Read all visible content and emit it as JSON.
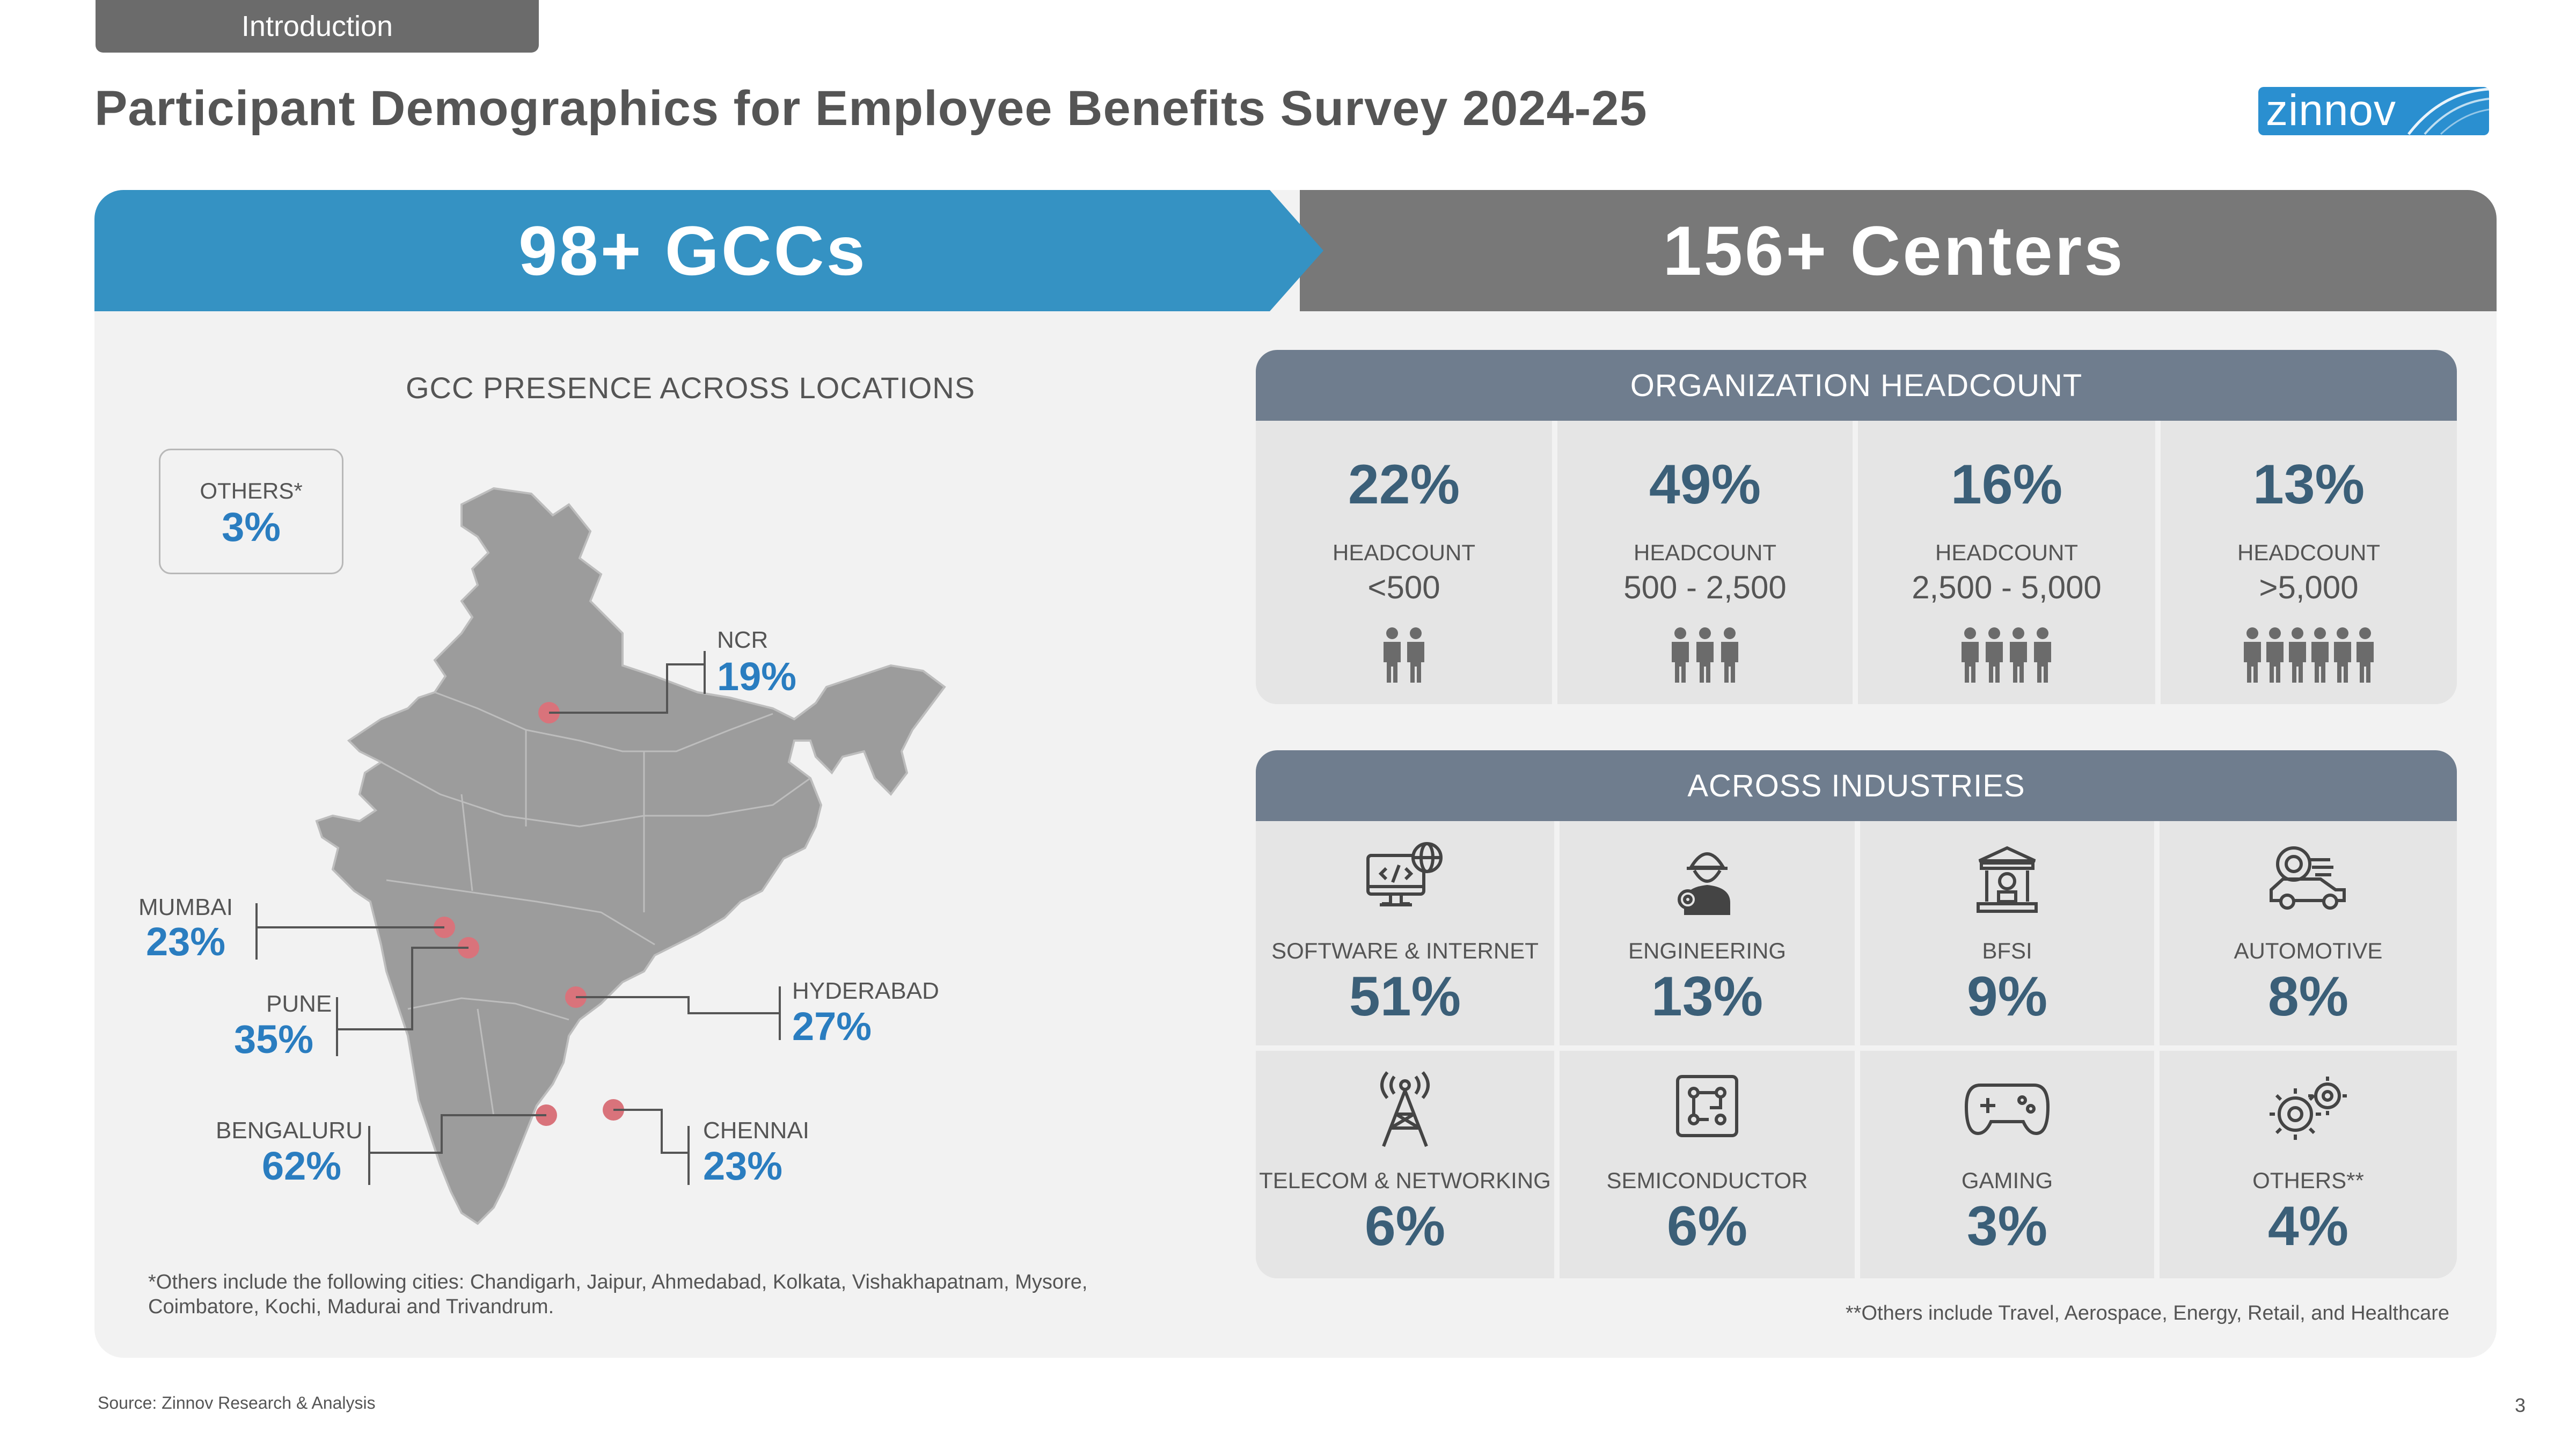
{
  "header": {
    "section_tab": "Introduction",
    "title": "Participant Demographics for Employee Benefits Survey 2024-25",
    "logo_text": "zinnov"
  },
  "banner": {
    "left": "98+ GCCs",
    "right": "156+ Centers",
    "left_color": "#3592c3",
    "right_color": "#787878"
  },
  "map": {
    "title": "GCC PRESENCE ACROSS LOCATIONS",
    "others": {
      "label": "OTHERS*",
      "value": "3%"
    },
    "cities": [
      {
        "name": "NCR",
        "value": "19%"
      },
      {
        "name": "MUMBAI",
        "value": "23%"
      },
      {
        "name": "PUNE",
        "value": "35%"
      },
      {
        "name": "HYDERABAD",
        "value": "27%"
      },
      {
        "name": "BENGALURU",
        "value": "62%"
      },
      {
        "name": "CHENNAI",
        "value": "23%"
      }
    ],
    "footnote": "*Others include the following cities: Chandigarh, Jaipur, Ahmedabad, Kolkata, Vishakhapatnam, Mysore, Coimbatore, Kochi, Madurai and Trivandrum."
  },
  "headcount": {
    "title": "ORGANIZATION HEADCOUNT",
    "items": [
      {
        "pct": "22%",
        "label": "HEADCOUNT",
        "range": "<500",
        "icon": "people-2-icon"
      },
      {
        "pct": "49%",
        "label": "HEADCOUNT",
        "range": "500 - 2,500",
        "icon": "people-3-icon"
      },
      {
        "pct": "16%",
        "label": "HEADCOUNT",
        "range": "2,500 - 5,000",
        "icon": "people-4-icon"
      },
      {
        "pct": "13%",
        "label": "HEADCOUNT",
        "range": ">5,000",
        "icon": "people-6-icon"
      }
    ]
  },
  "industries": {
    "title": "ACROSS INDUSTRIES",
    "items": [
      {
        "label": "SOFTWARE & INTERNET",
        "pct": "51%",
        "icon": "computer-globe-icon"
      },
      {
        "label": "ENGINEERING",
        "pct": "13%",
        "icon": "engineer-icon"
      },
      {
        "label": "BFSI",
        "pct": "9%",
        "icon": "bank-icon"
      },
      {
        "label": "AUTOMOTIVE",
        "pct": "8%",
        "icon": "car-icon"
      },
      {
        "label": "TELECOM & NETWORKING",
        "pct": "6%",
        "icon": "tower-icon"
      },
      {
        "label": "SEMICONDUCTOR",
        "pct": "6%",
        "icon": "chip-icon"
      },
      {
        "label": "GAMING",
        "pct": "3%",
        "icon": "gamepad-icon"
      },
      {
        "label": "OTHERS**",
        "pct": "4%",
        "icon": "gears-icon"
      }
    ],
    "footnote": "**Others include Travel, Aerospace, Energy, Retail, and Healthcare"
  },
  "footer": {
    "source": "Source: Zinnov Research & Analysis",
    "page_number": "3"
  },
  "colors": {
    "accent_blue": "#2a7dc0",
    "stat_teal": "#3b5f78",
    "card_header": "#6f7d8e",
    "map_fill": "#9c9c9c",
    "map_dot": "#d9737b"
  }
}
